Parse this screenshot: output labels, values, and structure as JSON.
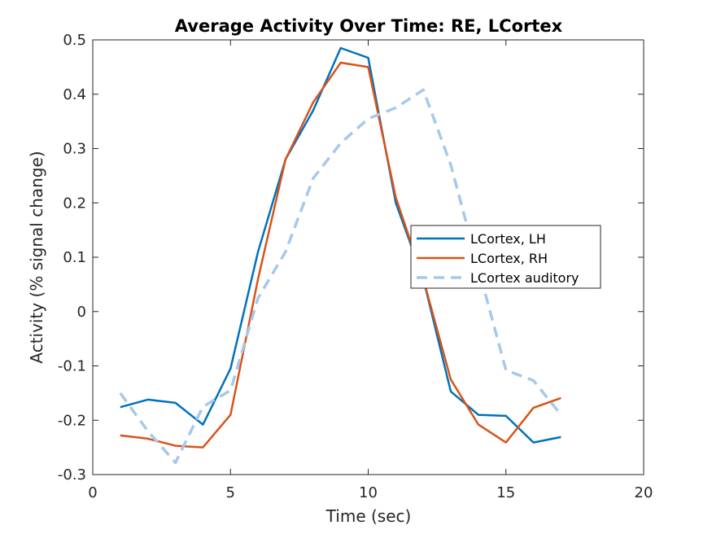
{
  "chart_data": {
    "type": "line",
    "title": "Average Activity Over Time: RE, LCortex",
    "xlabel": "Time (sec)",
    "ylabel": "Activity (% signal change)",
    "xlim": [
      0,
      20
    ],
    "ylim": [
      -0.3,
      0.5
    ],
    "xticks": [
      0,
      5,
      10,
      15,
      20
    ],
    "xtick_labels": [
      "0",
      "5",
      "10",
      "15",
      "20"
    ],
    "yticks": [
      -0.3,
      -0.2,
      -0.1,
      0,
      0.1,
      0.2,
      0.3,
      0.4,
      0.5
    ],
    "ytick_labels": [
      "-0.3",
      "-0.2",
      "-0.1",
      "0",
      "0.1",
      "0.2",
      "0.3",
      "0.4",
      "0.5"
    ],
    "grid": false,
    "legend_position": "center-right",
    "x": [
      1,
      2,
      3,
      4,
      5,
      6,
      7,
      8,
      9,
      10,
      11,
      12,
      13,
      14,
      15,
      16,
      17
    ],
    "series": [
      {
        "name": "LCortex, LH",
        "color": "#0072BD",
        "style": "solid",
        "values": [
          -0.176,
          -0.162,
          -0.168,
          -0.208,
          -0.105,
          0.11,
          0.28,
          0.37,
          0.485,
          0.467,
          0.2,
          0.06,
          -0.147,
          -0.19,
          -0.192,
          -0.241,
          -0.231
        ]
      },
      {
        "name": "LCortex, RH",
        "color": "#D95319",
        "style": "solid",
        "values": [
          -0.228,
          -0.234,
          -0.247,
          -0.25,
          -0.19,
          0.06,
          0.28,
          0.385,
          0.458,
          0.45,
          0.21,
          0.06,
          -0.125,
          -0.208,
          -0.241,
          -0.177,
          -0.159
        ]
      },
      {
        "name": "LCortex auditory",
        "color": "#A7C8EC",
        "style": "dashed",
        "values": [
          -0.15,
          -0.22,
          -0.278,
          -0.175,
          -0.145,
          0.025,
          0.11,
          0.245,
          0.31,
          0.355,
          0.375,
          0.408,
          0.27,
          0.08,
          -0.108,
          -0.127,
          -0.19
        ]
      }
    ]
  }
}
